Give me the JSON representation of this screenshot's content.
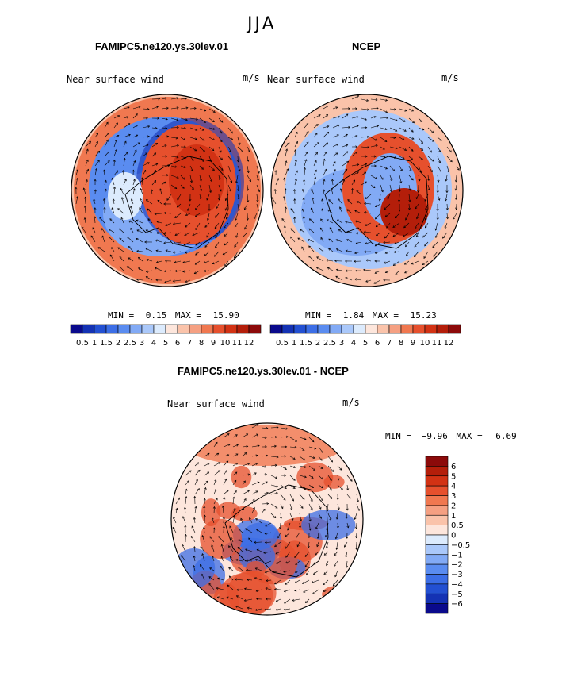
{
  "figure": {
    "title": "JJA"
  },
  "panels": [
    {
      "id": "model",
      "title": "FAMIPC5.ne120.ys.30lev.01",
      "left_label": "Near surface wind",
      "unit": "m/s",
      "min_label": "MIN =",
      "min": "0.15",
      "max_label": "MAX =",
      "max": "15.90"
    },
    {
      "id": "obs",
      "title": "NCEP",
      "left_label": "Near surface wind",
      "unit": "m/s",
      "min_label": "MIN =",
      "min": "1.84",
      "max_label": "MAX =",
      "max": "15.23"
    },
    {
      "id": "diff",
      "title": "FAMIPC5.ne120.ys.30lev.01 - NCEP",
      "left_label": "Near surface wind",
      "unit": "m/s",
      "min_label": "MIN =",
      "min": "−9.96",
      "max_label": "MAX =",
      "max": "6.69"
    }
  ],
  "colorbar_abs": {
    "labels": [
      "0.5",
      "1",
      "1.5",
      "2",
      "2.5",
      "3",
      "4",
      "5",
      "6",
      "7",
      "8",
      "9",
      "10",
      "11",
      "12"
    ],
    "colors": [
      "#0a0a8c",
      "#1432b4",
      "#2350d2",
      "#3c6ee6",
      "#5a8cf0",
      "#82aaf5",
      "#aac8fa",
      "#dcebfd",
      "#fde6dc",
      "#fac3aa",
      "#f5a082",
      "#f07850",
      "#e6502d",
      "#d23214",
      "#b41e0a",
      "#8c0a0a"
    ]
  },
  "colorbar_diff": {
    "labels": [
      "6",
      "5",
      "4",
      "3",
      "2",
      "1",
      "0.5",
      "0",
      "−0.5",
      "−1",
      "−2",
      "−3",
      "−4",
      "−5",
      "−6"
    ],
    "colors": [
      "#8c0a0a",
      "#b41e0a",
      "#d23214",
      "#e6502d",
      "#f07850",
      "#f5a082",
      "#fac3aa",
      "#fde6dc",
      "#dcebfd",
      "#aac8fa",
      "#82aaf5",
      "#5a8cf0",
      "#3c6ee6",
      "#2350d2",
      "#1432b4",
      "#0a0a8c"
    ]
  }
}
